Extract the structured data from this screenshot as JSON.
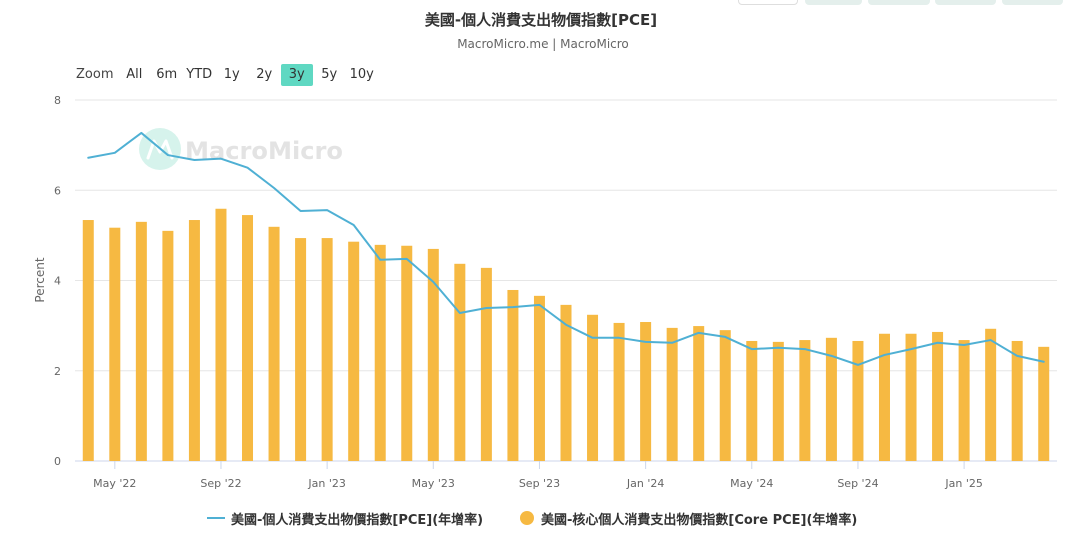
{
  "range_selector": {
    "zoom_label": "Zoom",
    "buttons": [
      {
        "label": "All"
      },
      {
        "label": "6m"
      },
      {
        "label": "YTD"
      },
      {
        "label": "1y"
      },
      {
        "label": "2y"
      },
      {
        "label": "3y",
        "selected": true
      },
      {
        "label": "5y"
      },
      {
        "label": "10y"
      }
    ],
    "selected_color": "#5fd8c2"
  },
  "watermark": {
    "text": "MacroMicro",
    "logo_icon": "macromicro-logo-icon",
    "logo_color": "#d6f3ec",
    "text_color": "#e3e3e3"
  },
  "chart_data": {
    "type": "bar",
    "title": "美國-個人消費支出物價指數[PCE]",
    "subtitle": "MacroMicro.me | MacroMicro",
    "ylabel": "Percent",
    "ylim": [
      0,
      8
    ],
    "yticks": [
      0,
      2,
      4,
      6,
      8
    ],
    "grid": {
      "y": true,
      "x": false
    },
    "legend_position": "bottom-center",
    "x": [
      "2022-04",
      "2022-05",
      "2022-06",
      "2022-07",
      "2022-08",
      "2022-09",
      "2022-10",
      "2022-11",
      "2022-12",
      "2023-01",
      "2023-02",
      "2023-03",
      "2023-04",
      "2023-05",
      "2023-06",
      "2023-07",
      "2023-08",
      "2023-09",
      "2023-10",
      "2023-11",
      "2023-12",
      "2024-01",
      "2024-02",
      "2024-03",
      "2024-04",
      "2024-05",
      "2024-06",
      "2024-07",
      "2024-08",
      "2024-09",
      "2024-10",
      "2024-11",
      "2024-12",
      "2025-01",
      "2025-02",
      "2025-03",
      "2025-04"
    ],
    "xticks": [
      {
        "x": "2022-05",
        "label": "May '22"
      },
      {
        "x": "2022-09",
        "label": "Sep '22"
      },
      {
        "x": "2023-01",
        "label": "Jan '23"
      },
      {
        "x": "2023-05",
        "label": "May '23"
      },
      {
        "x": "2023-09",
        "label": "Sep '23"
      },
      {
        "x": "2024-01",
        "label": "Jan '24"
      },
      {
        "x": "2024-05",
        "label": "May '24"
      },
      {
        "x": "2024-09",
        "label": "Sep '24"
      },
      {
        "x": "2025-01",
        "label": "Jan '25"
      }
    ],
    "series": [
      {
        "name": "美國-個人消費支出物價指數[PCE](年增率)",
        "type": "line",
        "color": "#4fb0d4",
        "values": [
          6.72,
          6.83,
          7.27,
          6.78,
          6.67,
          6.7,
          6.5,
          6.05,
          5.54,
          5.56,
          5.23,
          4.46,
          4.48,
          3.97,
          3.28,
          3.39,
          3.41,
          3.46,
          3.02,
          2.73,
          2.73,
          2.64,
          2.62,
          2.84,
          2.75,
          2.48,
          2.51,
          2.48,
          2.33,
          2.13,
          2.35,
          2.48,
          2.62,
          2.57,
          2.68,
          2.33,
          2.2
        ]
      },
      {
        "name": "美國-核心個人消費支出物價指數[Core PCE](年增率)",
        "type": "bar",
        "color": "#f6b942",
        "values": [
          5.34,
          5.17,
          5.3,
          5.1,
          5.34,
          5.59,
          5.45,
          5.19,
          4.94,
          4.94,
          4.86,
          4.79,
          4.77,
          4.7,
          4.37,
          4.28,
          3.79,
          3.66,
          3.46,
          3.24,
          3.06,
          3.08,
          2.95,
          2.99,
          2.9,
          2.66,
          2.64,
          2.68,
          2.73,
          2.66,
          2.82,
          2.82,
          2.86,
          2.68,
          2.93,
          2.66,
          2.53
        ]
      }
    ]
  }
}
